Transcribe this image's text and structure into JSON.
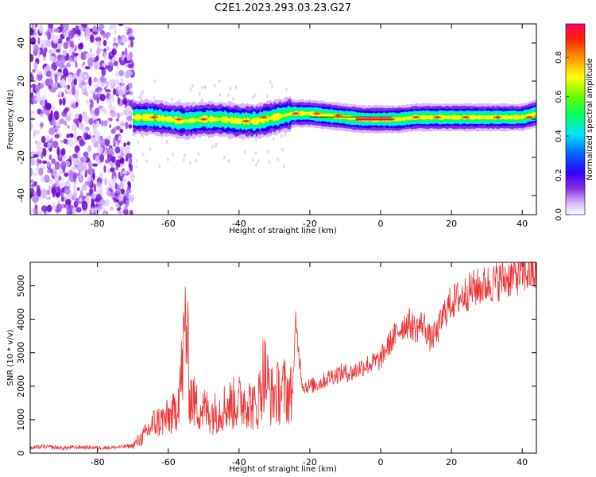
{
  "title": "C2E1.2023.293.03.23.G27",
  "chart_data": [
    {
      "type": "heatmap",
      "xlabel": "Height of straight line (km)",
      "ylabel": "Frequency (Hz)",
      "xlim": [
        -99,
        44
      ],
      "ylim": [
        -50,
        50
      ],
      "x_ticks": [
        -80,
        -60,
        -40,
        -20,
        0,
        20,
        40
      ],
      "y_ticks": [
        -40,
        -20,
        0,
        20,
        40
      ],
      "description_values": {
        "noise_region_x": [
          -99,
          -70
        ],
        "signal_region_x": [
          -70,
          44
        ],
        "signal_center_freq": [
          [
            -70,
            1
          ],
          [
            -65,
            1
          ],
          [
            -60,
            0
          ],
          [
            -55,
            -1
          ],
          [
            -50,
            0
          ],
          [
            -45,
            0
          ],
          [
            -40,
            -1
          ],
          [
            -35,
            -1
          ],
          [
            -30,
            1
          ],
          [
            -25,
            3
          ],
          [
            -20,
            3
          ],
          [
            -15,
            2
          ],
          [
            -10,
            1
          ],
          [
            -5,
            0
          ],
          [
            0,
            0
          ],
          [
            5,
            0
          ],
          [
            10,
            1
          ],
          [
            15,
            1
          ],
          [
            20,
            1
          ],
          [
            25,
            1
          ],
          [
            30,
            1
          ],
          [
            35,
            1
          ],
          [
            40,
            1
          ],
          [
            44,
            3
          ]
        ]
      },
      "colorbar": {
        "label": "Normalized spectral amplitude",
        "range": [
          0,
          0.97
        ],
        "ticks": [
          "0.0",
          "0.2",
          "0.4",
          "0.6",
          "0.8"
        ]
      }
    },
    {
      "type": "line",
      "xlabel": "Height of straight line (km)",
      "ylabel": "SNR (10 * v/v)",
      "xlim": [
        -99,
        44
      ],
      "ylim": [
        0,
        5700
      ],
      "x_ticks": [
        -80,
        -60,
        -40,
        -20,
        0,
        20,
        40
      ],
      "y_ticks": [
        0,
        1000,
        2000,
        3000,
        4000,
        5000
      ],
      "color": "#ee3333",
      "series": [
        {
          "x": [
            -99,
            -95,
            -90,
            -85,
            -80,
            -75,
            -70,
            -67,
            -64,
            -61,
            -58,
            -56,
            -55,
            -54,
            -52,
            -50,
            -47,
            -44,
            -41,
            -38,
            -35,
            -33,
            -31,
            -29,
            -27,
            -25,
            -24,
            -22,
            -20,
            -17,
            -14,
            -11,
            -8,
            -5,
            -2,
            0,
            2,
            4,
            6,
            8,
            10,
            12,
            14,
            16,
            18,
            20,
            23,
            26,
            29,
            32,
            35,
            38,
            41,
            44
          ],
          "y": [
            150,
            200,
            150,
            180,
            160,
            170,
            220,
            500,
            900,
            1000,
            1200,
            2500,
            4200,
            1800,
            1400,
            1300,
            1200,
            1400,
            1500,
            1600,
            1300,
            2500,
            1700,
            1800,
            1900,
            1700,
            3800,
            2000,
            2000,
            2100,
            2300,
            2400,
            2400,
            2600,
            2700,
            2800,
            3200,
            3500,
            3800,
            3900,
            3700,
            3900,
            3400,
            3600,
            4200,
            4500,
            4700,
            4900,
            5000,
            5100,
            5200,
            5300,
            5400,
            5350
          ]
        }
      ]
    }
  ]
}
